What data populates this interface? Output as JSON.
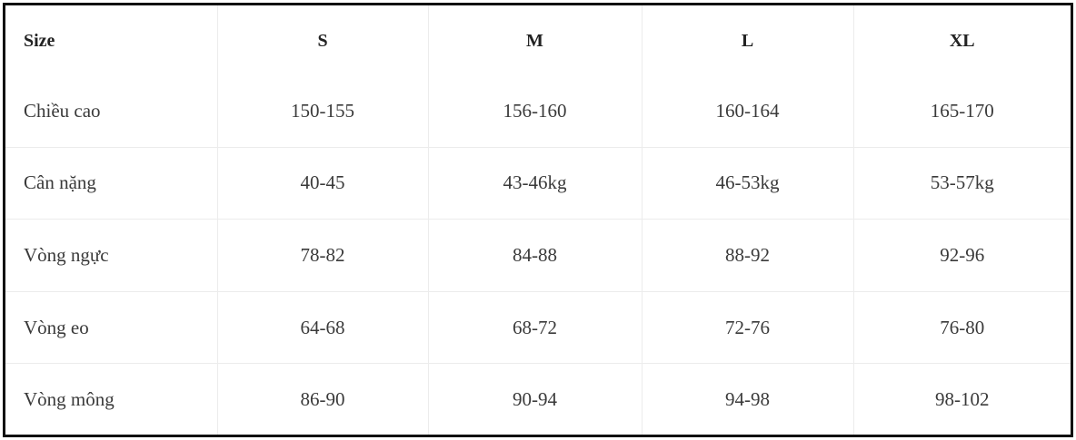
{
  "table": {
    "header": [
      "Size",
      "S",
      "M",
      "L",
      "XL"
    ],
    "rows": [
      [
        "Chiều cao",
        "150-155",
        "156-160",
        "160-164",
        "165-170"
      ],
      [
        "Cân nặng",
        "40-45",
        "43-46kg",
        "46-53kg",
        "53-57kg"
      ],
      [
        "Vòng ngực",
        "78-82",
        "84-88",
        "88-92",
        "92-96"
      ],
      [
        "Vòng eo",
        "64-68",
        "68-72",
        "72-76",
        "76-80"
      ],
      [
        "Vòng mông",
        "86-90",
        "90-94",
        "94-98",
        "98-102"
      ]
    ]
  }
}
